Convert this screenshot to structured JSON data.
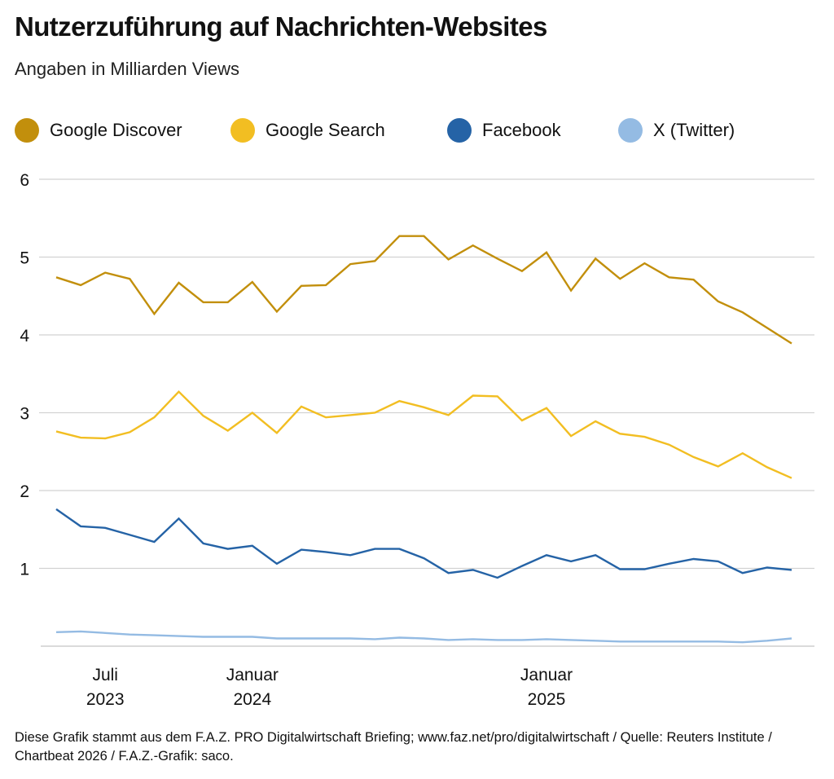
{
  "title": "Nutzerzuführung auf Nachrichten-Websites",
  "subtitle": "Angaben in Milliarden Views",
  "footer": "Diese Grafik stammt aus dem F.A.Z. PRO Digitalwirtschaft Briefing; www.faz.net/pro/digitalwirtschaft / Quelle: Reuters Institute / Chartbeat 2026 / F.A.Z.-Grafik: saco.",
  "chart_data": {
    "type": "line",
    "title": "Nutzerzuführung auf Nachrichten-Websites",
    "subtitle": "Angaben in Milliarden Views",
    "xlabel": "",
    "ylabel": "",
    "ylim": [
      0,
      6
    ],
    "yticks": [
      1,
      2,
      3,
      4,
      5,
      6
    ],
    "grid": true,
    "legend_position": "top",
    "x_count": 31,
    "xticks": [
      {
        "index": 2,
        "line1": "Juli",
        "line2": "2023"
      },
      {
        "index": 8,
        "line1": "Januar",
        "line2": "2024"
      },
      {
        "index": 20,
        "line1": "Januar",
        "line2": "2025"
      }
    ],
    "series": [
      {
        "name": "Google Discover",
        "color": "#C28F0C",
        "values": [
          4.74,
          4.64,
          4.8,
          4.72,
          4.27,
          4.67,
          4.42,
          4.42,
          4.68,
          4.3,
          4.63,
          4.64,
          4.91,
          4.95,
          5.27,
          5.27,
          4.97,
          5.15,
          4.98,
          4.82,
          5.06,
          4.57,
          4.98,
          4.72,
          4.92,
          4.74,
          4.71,
          4.43,
          4.29,
          4.09,
          3.89
        ]
      },
      {
        "name": "Google Search",
        "color": "#F2BE22",
        "values": [
          2.76,
          2.68,
          2.67,
          2.75,
          2.94,
          3.27,
          2.96,
          2.77,
          3.0,
          2.74,
          3.08,
          2.94,
          2.97,
          3.0,
          3.15,
          3.07,
          2.97,
          3.22,
          3.21,
          2.9,
          3.06,
          2.7,
          2.89,
          2.73,
          2.69,
          2.59,
          2.43,
          2.31,
          2.48,
          2.3,
          2.16
        ]
      },
      {
        "name": "Facebook",
        "color": "#2563A6",
        "values": [
          1.76,
          1.54,
          1.52,
          1.43,
          1.34,
          1.64,
          1.32,
          1.25,
          1.29,
          1.06,
          1.24,
          1.21,
          1.17,
          1.25,
          1.25,
          1.13,
          0.94,
          0.98,
          0.88,
          1.03,
          1.17,
          1.09,
          1.17,
          0.99,
          0.99,
          1.06,
          1.12,
          1.09,
          0.94,
          1.01,
          0.98
        ]
      },
      {
        "name": "X (Twitter)",
        "color": "#94BBE3",
        "values": [
          0.18,
          0.19,
          0.17,
          0.15,
          0.14,
          0.13,
          0.12,
          0.12,
          0.12,
          0.1,
          0.1,
          0.1,
          0.1,
          0.09,
          0.11,
          0.1,
          0.08,
          0.09,
          0.08,
          0.08,
          0.09,
          0.08,
          0.07,
          0.06,
          0.06,
          0.06,
          0.06,
          0.06,
          0.05,
          0.07,
          0.1
        ]
      }
    ]
  }
}
